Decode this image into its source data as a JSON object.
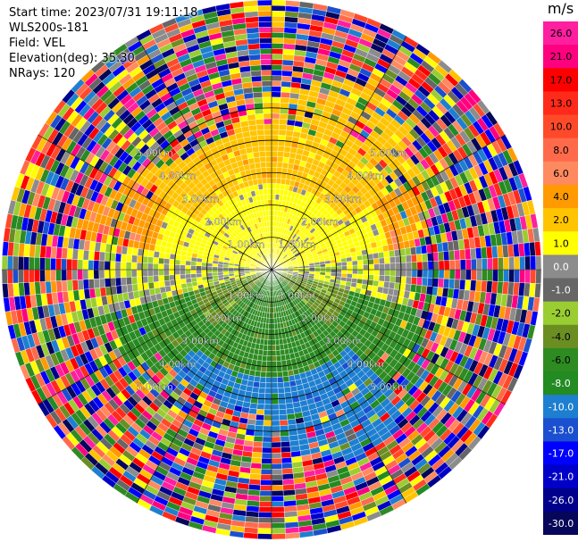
{
  "info": {
    "start_time": "Start time: 2023/07/31 19:11:18",
    "instrument": "WLS200s-181",
    "field": "Field: VEL",
    "elevation": "Elevation(deg): 35.30",
    "nrays": "NRays: 120"
  },
  "colorbar": {
    "unit": "m/s",
    "ticks": [
      "26.0",
      "21.0",
      "17.0",
      "13.0",
      "10.0",
      "8.0",
      "6.0",
      "4.0",
      "2.0",
      "1.0",
      "0.0",
      "-1.0",
      "-2.0",
      "-4.0",
      "-6.0",
      "-8.0",
      "-10.0",
      "-13.0",
      "-17.0",
      "-21.0",
      "-26.0",
      "-30.0"
    ],
    "colors": [
      "#ff1f9f",
      "#ff007f",
      "#ff0000",
      "#ff2a1a",
      "#ff4a2a",
      "#ff6a4a",
      "#ff8a60",
      "#ff9b00",
      "#ffc400",
      "#ffff00",
      "#8c8c8c",
      "#666666",
      "#9acd32",
      "#6b8e23",
      "#2e8b22",
      "#228b22",
      "#1e7fd0",
      "#1a50d0",
      "#0000ff",
      "#0000c8",
      "#00008b",
      "#06065a"
    ]
  },
  "chart_data": {
    "type": "ppi",
    "field": "VEL",
    "units": "m/s",
    "nrays": 120,
    "range_rings_km": [
      1.0,
      2.0,
      3.0,
      4.0,
      5.0
    ],
    "ring_labels": [
      "1.00km",
      "2.00km",
      "3.00km",
      "4.00km",
      "5.00km"
    ],
    "max_range_km": 5.0,
    "velocity_range": [
      -30.0,
      26.0
    ]
  }
}
